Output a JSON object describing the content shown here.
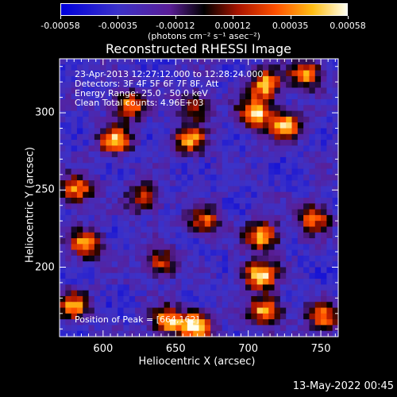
{
  "chart_data": {
    "type": "heatmap",
    "title": "Reconstructed RHESSI Image",
    "xlabel": "Heliocentric X (arcsec)",
    "ylabel": "Heliocentric Y (arcsec)",
    "xlim": [
      570,
      762
    ],
    "ylim": [
      155,
      335
    ],
    "xticks": [
      600,
      650,
      700,
      750
    ],
    "yticks": [
      200,
      250,
      300
    ],
    "colorbar": {
      "min": -0.00058,
      "max": 0.00058,
      "ticks": [
        "-0.00058",
        "-0.00035",
        "-0.00012",
        "0.00012",
        "0.00035",
        "0.00058"
      ],
      "units": "(photons cm⁻² s⁻¹ asec⁻²)"
    },
    "annotations": [
      "23-Apr-2013 12:27:12.000 to 12:28:24.000",
      "Detectors: 3F 4F 5F 6F 7F 8F, Att",
      "Energy Range: 25.0 - 50.0 keV",
      "Clean     Total counts: 4.96E+03"
    ],
    "peak_text": "Position of Peak = [664,162]",
    "hotspots": [
      {
        "x": 608,
        "y": 282,
        "intensity": 0.00045
      },
      {
        "x": 618,
        "y": 305,
        "intensity": 0.0004
      },
      {
        "x": 660,
        "y": 282,
        "intensity": 0.0004
      },
      {
        "x": 663,
        "y": 304,
        "intensity": 0.0003
      },
      {
        "x": 705,
        "y": 300,
        "intensity": 0.00055
      },
      {
        "x": 712,
        "y": 318,
        "intensity": 0.0005
      },
      {
        "x": 726,
        "y": 292,
        "intensity": 0.00045
      },
      {
        "x": 710,
        "y": 220,
        "intensity": 0.0005
      },
      {
        "x": 708,
        "y": 195,
        "intensity": 0.00058
      },
      {
        "x": 712,
        "y": 172,
        "intensity": 0.0005
      },
      {
        "x": 664,
        "y": 162,
        "intensity": 0.00058
      },
      {
        "x": 645,
        "y": 165,
        "intensity": 0.00045
      },
      {
        "x": 588,
        "y": 215,
        "intensity": 0.00045
      },
      {
        "x": 582,
        "y": 250,
        "intensity": 0.0004
      },
      {
        "x": 580,
        "y": 175,
        "intensity": 0.00035
      },
      {
        "x": 740,
        "y": 325,
        "intensity": 0.0004
      },
      {
        "x": 745,
        "y": 232,
        "intensity": 0.00035
      },
      {
        "x": 670,
        "y": 230,
        "intensity": 0.0003
      },
      {
        "x": 628,
        "y": 245,
        "intensity": 0.00025
      },
      {
        "x": 752,
        "y": 168,
        "intensity": 0.00035
      },
      {
        "x": 640,
        "y": 203,
        "intensity": 0.00025
      }
    ]
  },
  "footer": {
    "timestamp": "13-May-2022 00:45"
  }
}
